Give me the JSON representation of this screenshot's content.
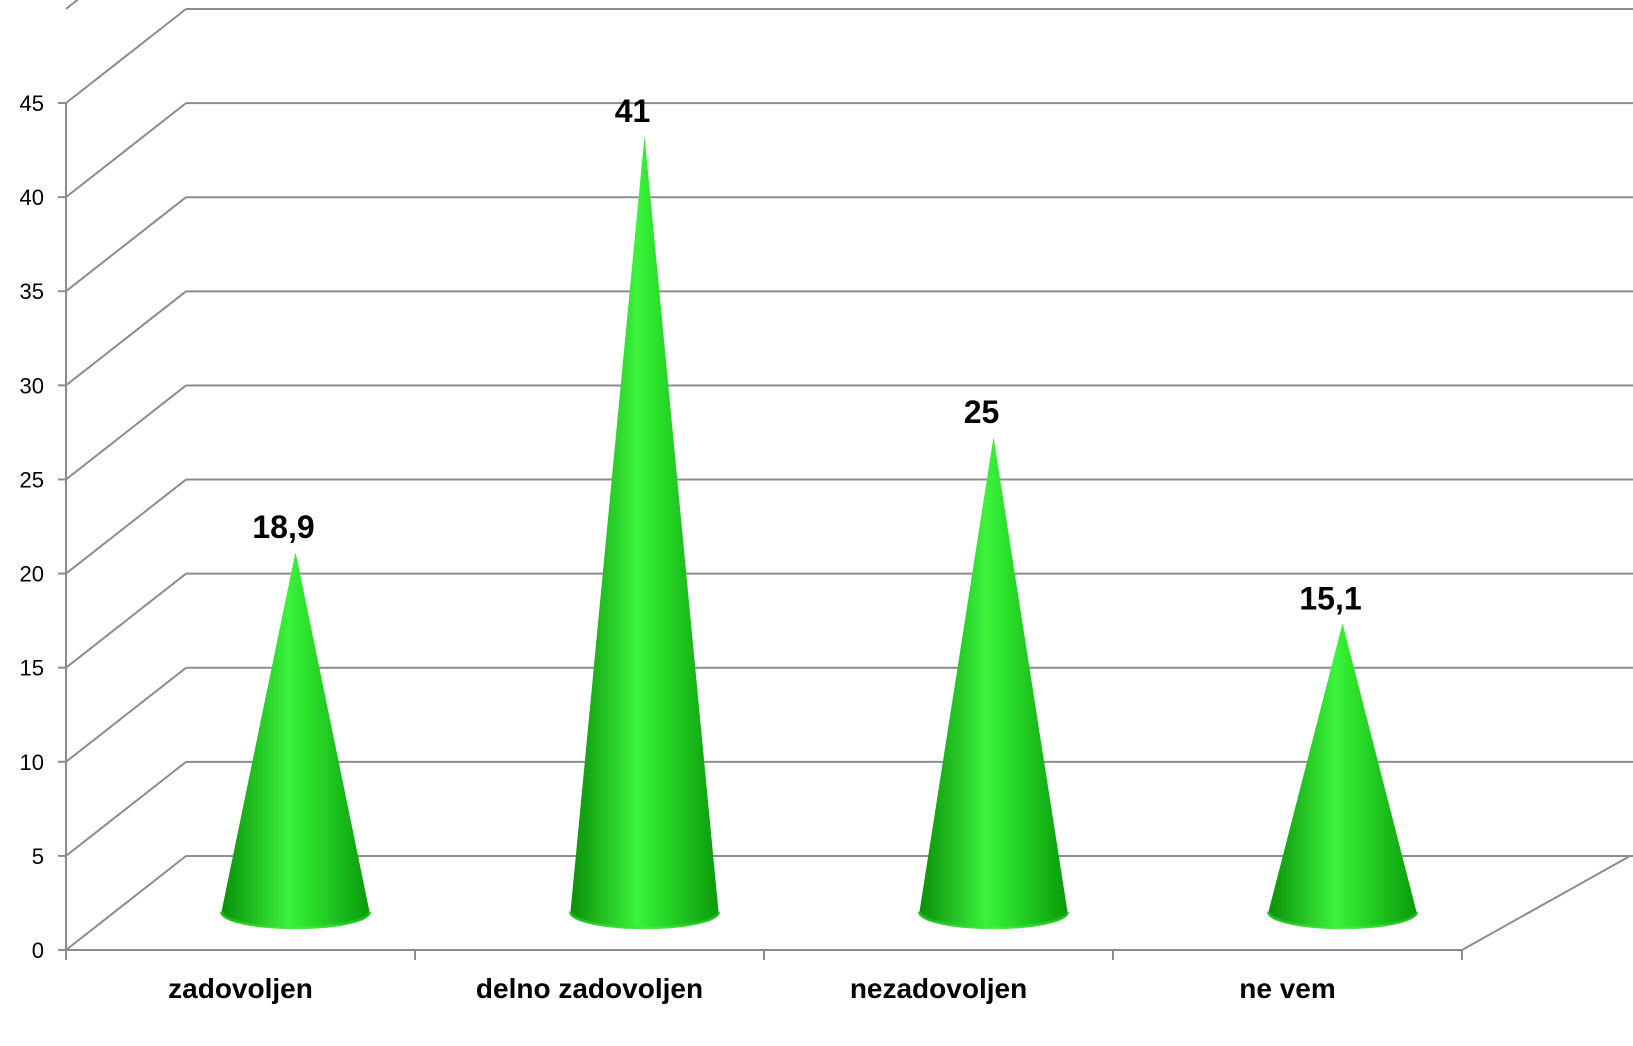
{
  "chart_data": {
    "type": "bar",
    "bar_shape": "cone",
    "three_d": true,
    "categories": [
      "zadovoljen",
      "delno zadovoljen",
      "nezadovoljen",
      "ne vem"
    ],
    "values": [
      18.9,
      41,
      25,
      15.1
    ],
    "data_labels": [
      "18,9",
      "41",
      "25",
      "15,1"
    ],
    "ylim": [
      0,
      45
    ],
    "yticks": [
      0,
      5,
      10,
      15,
      20,
      25,
      30,
      35,
      40,
      45
    ],
    "grid": true,
    "legend": false,
    "colors": {
      "cone": "#1fd41f",
      "cone_light": "#4dff4d",
      "cone_dark": "#0a8f0a",
      "grid": "#8c8c8c"
    }
  }
}
